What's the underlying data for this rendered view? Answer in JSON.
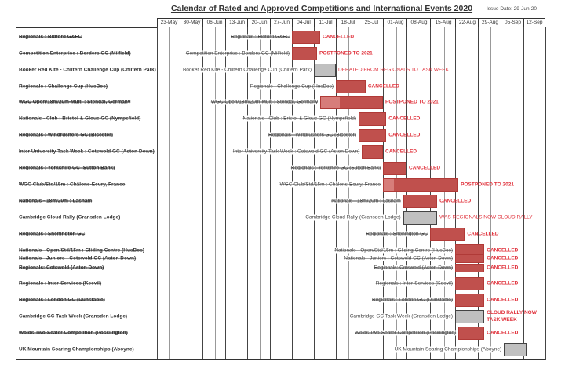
{
  "title": "Calendar of Rated and Approved Competitions and International Events 2020",
  "issue_date": "Issue Date: 29-Jun-20",
  "weeks": [
    "23-May",
    "30-May",
    "06-Jun",
    "13-Jun",
    "20-Jun",
    "27-Jun",
    "04-Jul",
    "11-Jul",
    "18-Jul",
    "25-Jul",
    "01-Aug",
    "08-Aug",
    "15-Aug",
    "22-Aug",
    "29-Aug",
    "05-Sep",
    "12-Sep"
  ],
  "colors": {
    "cancelled_bar": "#c0504d",
    "rescheduled_bar": "#c0c0c0",
    "status_text": "#e0303a"
  },
  "events": [
    {
      "name": "Regionals : Bidford G&FC",
      "struck": true,
      "bar": "red",
      "start": "2020-07-04",
      "end": "2020-07-13",
      "status": "CANCELLED"
    },
    {
      "name": "Competition Enterprise : Borders GC (Milfield)",
      "struck": true,
      "bar": "red",
      "start": "2020-07-04",
      "end": "2020-07-12",
      "status": "POSTPONED TO 2021"
    },
    {
      "name": "Booker Red Kite - Chiltern Challenge Cup (Chiltern Park)",
      "struck": false,
      "bar": "grey",
      "start": "2020-07-11",
      "end": "2020-07-18",
      "status": "DERATED FROM REGIONALS TO TASK WEEK",
      "status_thin": true
    },
    {
      "name": "Regionals : Challenge Cup (HusBos)",
      "struck": true,
      "bar": "red",
      "start": "2020-07-18",
      "end": "2020-07-27",
      "status": "CANCELLED"
    },
    {
      "name": "WGC Open/18m/20m-Multi : Stendal, Germany",
      "struck": true,
      "bar": "red",
      "start": "2020-07-13",
      "end": "2020-08-01",
      "light_until": "2020-07-19",
      "status": "POSTPONED TO 2021"
    },
    {
      "name": "Nationals - Club : Bristol & Glouc GC (Nympsfield)",
      "struck": true,
      "bar": "red",
      "start": "2020-07-25",
      "end": "2020-08-02",
      "status": "CANCELLED"
    },
    {
      "name": "Regionals : Windrushers GC (Bicester)",
      "struck": true,
      "bar": "red",
      "start": "2020-07-25",
      "end": "2020-08-02",
      "status": "CANCELLED"
    },
    {
      "name": "Inter University Task Week : Cotswold GC (Aston Down)",
      "struck": true,
      "bar": "red",
      "start": "2020-07-26",
      "end": "2020-08-01",
      "status": "CANCELLED"
    },
    {
      "name": "Regionals : Yorkshire GC (Sutton Bank)",
      "struck": true,
      "bar": "red",
      "start": "2020-08-01",
      "end": "2020-08-08",
      "status": "CANCELLED"
    },
    {
      "name": "WGC Club/Std/15m : Châlons-Ecury, France",
      "struck": true,
      "bar": "red",
      "start": "2020-08-01",
      "end": "2020-08-23",
      "light_until": "2020-08-04",
      "status": "POSTPONED TO 2021"
    },
    {
      "name": "Nationals - 18m/20m : Lasham",
      "struck": true,
      "bar": "red",
      "start": "2020-08-07",
      "end": "2020-08-17",
      "status": "CANCELLED"
    },
    {
      "name": "Cambridge Cloud Rally (Gransden Lodge)",
      "struck": false,
      "bar": "grey",
      "start": "2020-08-07",
      "end": "2020-08-17",
      "status": "WAS REGIONALS NOW CLOUD RALLY",
      "status_thin": true
    },
    {
      "name": "Regionals : Shenington GC",
      "struck": true,
      "bar": "red",
      "start": "2020-08-15",
      "end": "2020-08-25",
      "status": "CANCELLED"
    },
    {
      "name": "Nationals - Open/Std/15m : Gliding Centre (HusBos)",
      "struck": true,
      "bar": "red",
      "start": "2020-08-22",
      "end": "2020-08-31",
      "status": "CANCELLED"
    },
    {
      "name": "Nationals - Juniors : Cotswold GC (Aston Down)",
      "struck": true,
      "bar": "red",
      "start": "2020-08-22",
      "end": "2020-08-31",
      "status": "CANCELLED",
      "half": "top"
    },
    {
      "name": "Regionals: Cotswold (Aston Down)",
      "struck": true,
      "bar": "red",
      "start": "2020-08-22",
      "end": "2020-08-31",
      "status": "CANCELLED",
      "half": "bottom"
    },
    {
      "name": "Regionals : Inter-Services (Keevil)",
      "struck": true,
      "bar": "red",
      "start": "2020-08-22",
      "end": "2020-08-31",
      "status": "CANCELLED"
    },
    {
      "name": "Regionals : London GC (Dunstable)",
      "struck": true,
      "bar": "red",
      "start": "2020-08-22",
      "end": "2020-08-31",
      "status": "CANCELLED"
    },
    {
      "name": "Cambridge GC Task Week (Gransden Lodge)",
      "struck": false,
      "bar": "grey",
      "start": "2020-08-22",
      "end": "2020-08-31",
      "status": "CLOUD RALLY NOW TASK WEEK",
      "status_wrap": [
        "CLOUD RALLY NOW",
        "TASK WEEK"
      ]
    },
    {
      "name": "Wolds Two-Seater Competition (Pocklington)",
      "struck": true,
      "bar": "red",
      "start": "2020-08-23",
      "end": "2020-08-31",
      "status": "CANCELLED"
    },
    {
      "name": "UK Mountain Soaring Championships (Aboyne)",
      "struck": false,
      "bar": "grey",
      "start": "2020-09-06",
      "end": "2020-09-13",
      "status": ""
    }
  ]
}
